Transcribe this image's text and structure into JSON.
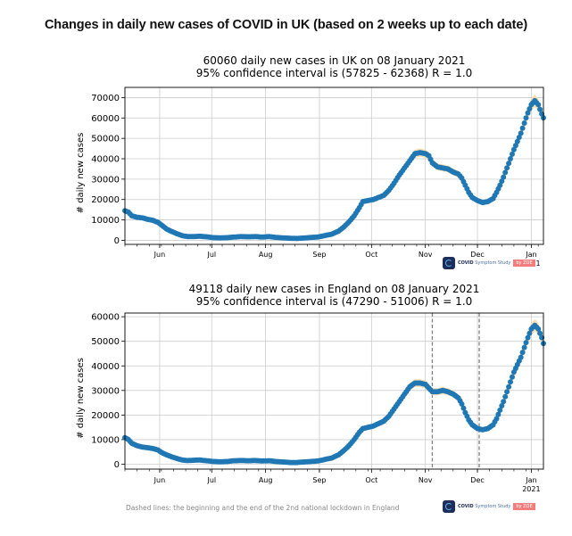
{
  "page": {
    "title": "Changes in daily new cases of COVID in UK (based on 2 weeks up to each date)",
    "footnote": "Dashed lines: the beginning and the end of the 2nd national lockdown in England",
    "logo": {
      "name": "COVID",
      "suffix": " Symptom Study",
      "badge": "by ZOE"
    },
    "colors": {
      "points": "#1f77b4",
      "ci_band": "#fddcaa",
      "grid": "#cccccc",
      "lockdown_line": "#808080"
    }
  },
  "chart_data": [
    {
      "type": "scatter",
      "id": "uk",
      "title": "60060 daily new cases in UK on 08 January 2021",
      "subtitle": "95% confidence interval is (57825 - 62368) R = 1.0",
      "xlabel": "",
      "ylabel": "# daily new cases",
      "ylim": [
        -2000,
        75000
      ],
      "yticks": [
        0,
        10000,
        20000,
        30000,
        40000,
        50000,
        60000,
        70000
      ],
      "ytick_labels": [
        "0",
        "10000",
        "20000",
        "30000",
        "40000",
        "50000",
        "60000",
        "70000"
      ],
      "xlim": [
        "2020-05-12",
        "2021-01-08"
      ],
      "xticks": [
        "2020-06-01",
        "2020-07-01",
        "2020-08-01",
        "2020-09-01",
        "2020-10-01",
        "2020-11-01",
        "2020-12-01",
        "2021-01-01"
      ],
      "xtick_labels": [
        "Jun",
        "Jul",
        "Aug",
        "Sep",
        "Oct",
        "Nov",
        "Dec",
        "Jan"
      ],
      "xtick_sublabels": [
        "",
        "",
        "",
        "",
        "",
        "",
        "",
        "2021"
      ],
      "grid": true,
      "vlines": [],
      "series": [
        {
          "name": "daily new cases",
          "points": [
            [
              "2020-05-12",
              14500
            ],
            [
              "2020-05-14",
              13800
            ],
            [
              "2020-05-16",
              12000
            ],
            [
              "2020-05-19",
              11300
            ],
            [
              "2020-05-22",
              11000
            ],
            [
              "2020-05-25",
              10300
            ],
            [
              "2020-05-28",
              9800
            ],
            [
              "2020-05-31",
              8800
            ],
            [
              "2020-06-02",
              7500
            ],
            [
              "2020-06-05",
              5500
            ],
            [
              "2020-06-08",
              4300
            ],
            [
              "2020-06-11",
              3200
            ],
            [
              "2020-06-14",
              2300
            ],
            [
              "2020-06-17",
              1800
            ],
            [
              "2020-06-20",
              1800
            ],
            [
              "2020-06-24",
              2000
            ],
            [
              "2020-06-28",
              1700
            ],
            [
              "2020-07-02",
              1300
            ],
            [
              "2020-07-06",
              1200
            ],
            [
              "2020-07-10",
              1300
            ],
            [
              "2020-07-14",
              1600
            ],
            [
              "2020-07-18",
              1800
            ],
            [
              "2020-07-22",
              1700
            ],
            [
              "2020-07-26",
              1800
            ],
            [
              "2020-07-30",
              1600
            ],
            [
              "2020-08-03",
              1800
            ],
            [
              "2020-08-07",
              1400
            ],
            [
              "2020-08-11",
              1200
            ],
            [
              "2020-08-15",
              1000
            ],
            [
              "2020-08-19",
              900
            ],
            [
              "2020-08-23",
              1100
            ],
            [
              "2020-08-27",
              1400
            ],
            [
              "2020-08-31",
              1600
            ],
            [
              "2020-09-04",
              2300
            ],
            [
              "2020-09-08",
              3000
            ],
            [
              "2020-09-12",
              4500
            ],
            [
              "2020-09-15",
              6500
            ],
            [
              "2020-09-18",
              9000
            ],
            [
              "2020-09-21",
              12000
            ],
            [
              "2020-09-24",
              16000
            ],
            [
              "2020-09-26",
              19000
            ],
            [
              "2020-09-29",
              19500
            ],
            [
              "2020-10-02",
              20000
            ],
            [
              "2020-10-05",
              21000
            ],
            [
              "2020-10-08",
              22000
            ],
            [
              "2020-10-11",
              24500
            ],
            [
              "2020-10-14",
              28000
            ],
            [
              "2020-10-17",
              32000
            ],
            [
              "2020-10-20",
              35500
            ],
            [
              "2020-10-23",
              39000
            ],
            [
              "2020-10-26",
              42500
            ],
            [
              "2020-10-29",
              43000
            ],
            [
              "2020-11-01",
              42500
            ],
            [
              "2020-11-03",
              41500
            ],
            [
              "2020-11-05",
              38000
            ],
            [
              "2020-11-08",
              36000
            ],
            [
              "2020-11-11",
              35500
            ],
            [
              "2020-11-14",
              35000
            ],
            [
              "2020-11-17",
              33500
            ],
            [
              "2020-11-20",
              32500
            ],
            [
              "2020-11-22",
              30500
            ],
            [
              "2020-11-24",
              27000
            ],
            [
              "2020-11-26",
              23500
            ],
            [
              "2020-11-28",
              21000
            ],
            [
              "2020-12-01",
              19500
            ],
            [
              "2020-12-04",
              18500
            ],
            [
              "2020-12-07",
              19000
            ],
            [
              "2020-12-10",
              20500
            ],
            [
              "2020-12-12",
              23500
            ],
            [
              "2020-12-14",
              27000
            ],
            [
              "2020-12-16",
              31000
            ],
            [
              "2020-12-18",
              35500
            ],
            [
              "2020-12-20",
              40000
            ],
            [
              "2020-12-22",
              44500
            ],
            [
              "2020-12-24",
              48500
            ],
            [
              "2020-12-26",
              52500
            ],
            [
              "2020-12-28",
              57500
            ],
            [
              "2020-12-30",
              62500
            ],
            [
              "2021-01-01",
              66500
            ],
            [
              "2021-01-03",
              68500
            ],
            [
              "2021-01-05",
              66500
            ],
            [
              "2021-01-07",
              62000
            ],
            [
              "2021-01-08",
              60060
            ]
          ]
        }
      ]
    },
    {
      "type": "scatter",
      "id": "england",
      "title": "49118 daily new cases in England on 08 January 2021",
      "subtitle": "95% confidence interval is (47290 - 51006) R = 1.0",
      "xlabel": "",
      "ylabel": "# daily new cases",
      "ylim": [
        -2000,
        61500
      ],
      "yticks": [
        0,
        10000,
        20000,
        30000,
        40000,
        50000,
        60000
      ],
      "ytick_labels": [
        "0",
        "10000",
        "20000",
        "30000",
        "40000",
        "50000",
        "60000"
      ],
      "xlim": [
        "2020-05-12",
        "2021-01-08"
      ],
      "xticks": [
        "2020-06-01",
        "2020-07-01",
        "2020-08-01",
        "2020-09-01",
        "2020-10-01",
        "2020-11-01",
        "2020-12-01",
        "2021-01-01"
      ],
      "xtick_labels": [
        "Jun",
        "Jul",
        "Aug",
        "Sep",
        "Oct",
        "Nov",
        "Dec",
        "Jan"
      ],
      "xtick_sublabels": [
        "",
        "",
        "",
        "",
        "",
        "",
        "",
        "2021"
      ],
      "grid": true,
      "vlines": [
        "2020-11-05",
        "2020-12-02"
      ],
      "series": [
        {
          "name": "daily new cases",
          "points": [
            [
              "2020-05-12",
              10800
            ],
            [
              "2020-05-14",
              10000
            ],
            [
              "2020-05-16",
              8500
            ],
            [
              "2020-05-19",
              7500
            ],
            [
              "2020-05-22",
              7000
            ],
            [
              "2020-05-25",
              6700
            ],
            [
              "2020-05-28",
              6400
            ],
            [
              "2020-05-31",
              5800
            ],
            [
              "2020-06-02",
              4800
            ],
            [
              "2020-06-05",
              3800
            ],
            [
              "2020-06-08",
              3000
            ],
            [
              "2020-06-11",
              2300
            ],
            [
              "2020-06-14",
              1700
            ],
            [
              "2020-06-17",
              1500
            ],
            [
              "2020-06-20",
              1600
            ],
            [
              "2020-06-24",
              1700
            ],
            [
              "2020-06-28",
              1400
            ],
            [
              "2020-07-02",
              1100
            ],
            [
              "2020-07-06",
              1000
            ],
            [
              "2020-07-10",
              1100
            ],
            [
              "2020-07-14",
              1400
            ],
            [
              "2020-07-18",
              1500
            ],
            [
              "2020-07-22",
              1400
            ],
            [
              "2020-07-26",
              1500
            ],
            [
              "2020-07-30",
              1300
            ],
            [
              "2020-08-03",
              1400
            ],
            [
              "2020-08-07",
              1100
            ],
            [
              "2020-08-11",
              900
            ],
            [
              "2020-08-15",
              700
            ],
            [
              "2020-08-19",
              700
            ],
            [
              "2020-08-23",
              900
            ],
            [
              "2020-08-27",
              1100
            ],
            [
              "2020-08-31",
              1300
            ],
            [
              "2020-09-04",
              1900
            ],
            [
              "2020-09-08",
              2500
            ],
            [
              "2020-09-12",
              3800
            ],
            [
              "2020-09-15",
              5500
            ],
            [
              "2020-09-18",
              7500
            ],
            [
              "2020-09-21",
              10000
            ],
            [
              "2020-09-24",
              13000
            ],
            [
              "2020-09-26",
              14500
            ],
            [
              "2020-09-29",
              15000
            ],
            [
              "2020-10-02",
              15500
            ],
            [
              "2020-10-05",
              16500
            ],
            [
              "2020-10-08",
              17500
            ],
            [
              "2020-10-11",
              19500
            ],
            [
              "2020-10-14",
              22500
            ],
            [
              "2020-10-17",
              25500
            ],
            [
              "2020-10-20",
              28500
            ],
            [
              "2020-10-23",
              31500
            ],
            [
              "2020-10-26",
              33000
            ],
            [
              "2020-10-29",
              33000
            ],
            [
              "2020-11-01",
              32500
            ],
            [
              "2020-11-03",
              31000
            ],
            [
              "2020-11-05",
              29500
            ],
            [
              "2020-11-08",
              29500
            ],
            [
              "2020-11-11",
              30000
            ],
            [
              "2020-11-14",
              29500
            ],
            [
              "2020-11-17",
              28500
            ],
            [
              "2020-11-20",
              27000
            ],
            [
              "2020-11-22",
              24500
            ],
            [
              "2020-11-24",
              21000
            ],
            [
              "2020-11-26",
              18000
            ],
            [
              "2020-11-28",
              16000
            ],
            [
              "2020-12-01",
              14500
            ],
            [
              "2020-12-04",
              14000
            ],
            [
              "2020-12-07",
              14500
            ],
            [
              "2020-12-10",
              16000
            ],
            [
              "2020-12-12",
              18500
            ],
            [
              "2020-12-14",
              22000
            ],
            [
              "2020-12-16",
              25500
            ],
            [
              "2020-12-18",
              29500
            ],
            [
              "2020-12-20",
              33500
            ],
            [
              "2020-12-22",
              37500
            ],
            [
              "2020-12-24",
              40500
            ],
            [
              "2020-12-26",
              43500
            ],
            [
              "2020-12-28",
              47500
            ],
            [
              "2020-12-30",
              51500
            ],
            [
              "2021-01-01",
              55000
            ],
            [
              "2021-01-03",
              56500
            ],
            [
              "2021-01-05",
              55000
            ],
            [
              "2021-01-07",
              51500
            ],
            [
              "2021-01-08",
              49118
            ]
          ]
        }
      ]
    }
  ]
}
